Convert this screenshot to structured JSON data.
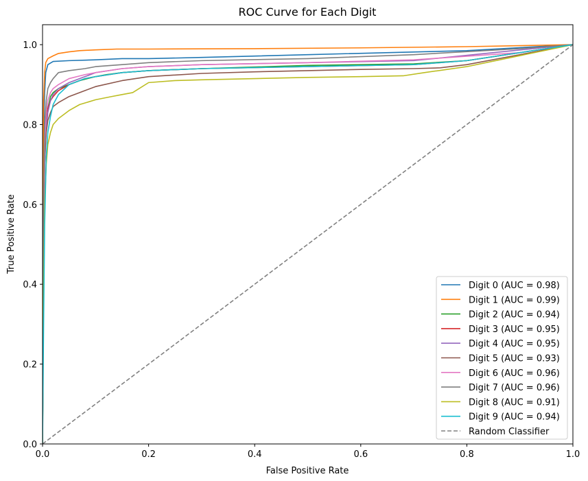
{
  "chart_data": {
    "type": "line",
    "title": "ROC Curve for Each Digit",
    "xlabel": "False Positive Rate",
    "ylabel": "True Positive Rate",
    "xlim": [
      0,
      1
    ],
    "ylim": [
      0,
      1.05
    ],
    "xticks": [
      "0.0",
      "0.2",
      "0.4",
      "0.6",
      "0.8",
      "1.0"
    ],
    "yticks": [
      "0.0",
      "0.2",
      "0.4",
      "0.6",
      "0.8",
      "1.0"
    ],
    "grid": false,
    "legend_position": "bottom-right",
    "series": [
      {
        "name": "Digit 0 (AUC = 0.98)",
        "color": "#1f77b4",
        "dash": false,
        "x": [
          0,
          0.001,
          0.002,
          0.004,
          0.006,
          0.01,
          0.02,
          0.05,
          0.1,
          0.15,
          0.2,
          0.3,
          0.5,
          0.8,
          1.0
        ],
        "y": [
          0,
          0.62,
          0.78,
          0.88,
          0.93,
          0.95,
          0.958,
          0.96,
          0.962,
          0.965,
          0.965,
          0.968,
          0.975,
          0.985,
          1.0
        ]
      },
      {
        "name": "Digit 1 (AUC = 0.99)",
        "color": "#ff7f0e",
        "dash": false,
        "x": [
          0,
          0.001,
          0.002,
          0.004,
          0.006,
          0.01,
          0.02,
          0.03,
          0.05,
          0.07,
          0.1,
          0.14,
          0.2,
          0.4,
          0.6,
          0.8,
          1.0
        ],
        "y": [
          0,
          0.7,
          0.86,
          0.93,
          0.955,
          0.965,
          0.972,
          0.978,
          0.982,
          0.985,
          0.987,
          0.989,
          0.989,
          0.99,
          0.992,
          0.995,
          1.0
        ]
      },
      {
        "name": "Digit 2 (AUC = 0.94)",
        "color": "#2ca02c",
        "dash": false,
        "x": [
          0,
          0.002,
          0.004,
          0.007,
          0.01,
          0.015,
          0.02,
          0.03,
          0.05,
          0.07,
          0.1,
          0.12,
          0.15,
          0.2,
          0.3,
          0.5,
          0.7,
          0.8,
          1.0
        ],
        "y": [
          0,
          0.5,
          0.7,
          0.8,
          0.84,
          0.87,
          0.88,
          0.89,
          0.9,
          0.91,
          0.92,
          0.925,
          0.93,
          0.935,
          0.94,
          0.948,
          0.952,
          0.96,
          1.0
        ]
      },
      {
        "name": "Digit 3 (AUC = 0.95)",
        "color": "#d62728",
        "dash": false,
        "x": [
          0,
          0.002,
          0.004,
          0.007,
          0.01,
          0.015,
          0.02,
          0.03,
          0.05,
          0.08,
          0.1,
          0.15,
          0.2,
          0.3,
          0.5,
          0.7,
          0.8,
          1.0
        ],
        "y": [
          0,
          0.55,
          0.72,
          0.8,
          0.84,
          0.86,
          0.87,
          0.885,
          0.9,
          0.915,
          0.92,
          0.93,
          0.935,
          0.94,
          0.945,
          0.95,
          0.96,
          1.0
        ]
      },
      {
        "name": "Digit 4 (AUC = 0.95)",
        "color": "#9467bd",
        "dash": false,
        "x": [
          0,
          0.002,
          0.004,
          0.007,
          0.01,
          0.015,
          0.02,
          0.03,
          0.05,
          0.08,
          0.1,
          0.15,
          0.2,
          0.3,
          0.5,
          0.7,
          1.0
        ],
        "y": [
          0,
          0.52,
          0.7,
          0.79,
          0.83,
          0.86,
          0.875,
          0.89,
          0.905,
          0.92,
          0.93,
          0.94,
          0.945,
          0.95,
          0.955,
          0.96,
          1.0
        ]
      },
      {
        "name": "Digit 5 (AUC = 0.93)",
        "color": "#8c564b",
        "dash": false,
        "x": [
          0,
          0.002,
          0.004,
          0.007,
          0.01,
          0.015,
          0.02,
          0.03,
          0.05,
          0.08,
          0.1,
          0.15,
          0.2,
          0.3,
          0.4,
          0.5,
          0.6,
          0.7,
          0.75,
          0.8,
          1.0
        ],
        "y": [
          0,
          0.6,
          0.72,
          0.78,
          0.81,
          0.83,
          0.845,
          0.855,
          0.87,
          0.885,
          0.895,
          0.91,
          0.92,
          0.928,
          0.932,
          0.935,
          0.938,
          0.94,
          0.942,
          0.95,
          1.0
        ]
      },
      {
        "name": "Digit 6 (AUC = 0.96)",
        "color": "#e377c2",
        "dash": false,
        "x": [
          0,
          0.002,
          0.004,
          0.007,
          0.01,
          0.015,
          0.02,
          0.03,
          0.05,
          0.08,
          0.1,
          0.15,
          0.2,
          0.3,
          0.5,
          0.7,
          0.9,
          1.0
        ],
        "y": [
          0,
          0.55,
          0.75,
          0.83,
          0.86,
          0.88,
          0.89,
          0.9,
          0.915,
          0.925,
          0.93,
          0.94,
          0.945,
          0.95,
          0.955,
          0.962,
          0.98,
          1.0
        ]
      },
      {
        "name": "Digit 7 (AUC = 0.96)",
        "color": "#7f7f7f",
        "dash": false,
        "x": [
          0,
          0.002,
          0.004,
          0.007,
          0.01,
          0.015,
          0.02,
          0.03,
          0.05,
          0.08,
          0.1,
          0.15,
          0.2,
          0.3,
          0.5,
          0.7,
          0.9,
          1.0
        ],
        "y": [
          0,
          0.6,
          0.8,
          0.86,
          0.89,
          0.905,
          0.915,
          0.93,
          0.935,
          0.94,
          0.945,
          0.95,
          0.955,
          0.96,
          0.965,
          0.975,
          0.99,
          1.0
        ]
      },
      {
        "name": "Digit 8 (AUC = 0.91)",
        "color": "#bcbd22",
        "dash": false,
        "x": [
          0,
          0.002,
          0.004,
          0.007,
          0.01,
          0.015,
          0.02,
          0.03,
          0.05,
          0.07,
          0.1,
          0.13,
          0.15,
          0.17,
          0.2,
          0.25,
          0.3,
          0.4,
          0.5,
          0.6,
          0.68,
          0.72,
          0.8,
          1.0
        ],
        "y": [
          0,
          0.4,
          0.6,
          0.7,
          0.75,
          0.78,
          0.8,
          0.815,
          0.835,
          0.85,
          0.862,
          0.87,
          0.875,
          0.88,
          0.905,
          0.91,
          0.912,
          0.915,
          0.918,
          0.92,
          0.922,
          0.93,
          0.945,
          1.0
        ]
      },
      {
        "name": "Digit 9 (AUC = 0.94)",
        "color": "#17becf",
        "dash": false,
        "x": [
          0,
          0.002,
          0.004,
          0.007,
          0.01,
          0.015,
          0.02,
          0.03,
          0.05,
          0.08,
          0.1,
          0.15,
          0.2,
          0.3,
          0.5,
          0.7,
          0.8,
          1.0
        ],
        "y": [
          0,
          0.3,
          0.55,
          0.72,
          0.78,
          0.82,
          0.85,
          0.875,
          0.9,
          0.915,
          0.92,
          0.93,
          0.935,
          0.94,
          0.945,
          0.95,
          0.96,
          1.0
        ]
      },
      {
        "name": "Random Classifier",
        "color": "#808080",
        "dash": true,
        "x": [
          0,
          1
        ],
        "y": [
          0,
          1
        ]
      }
    ]
  }
}
